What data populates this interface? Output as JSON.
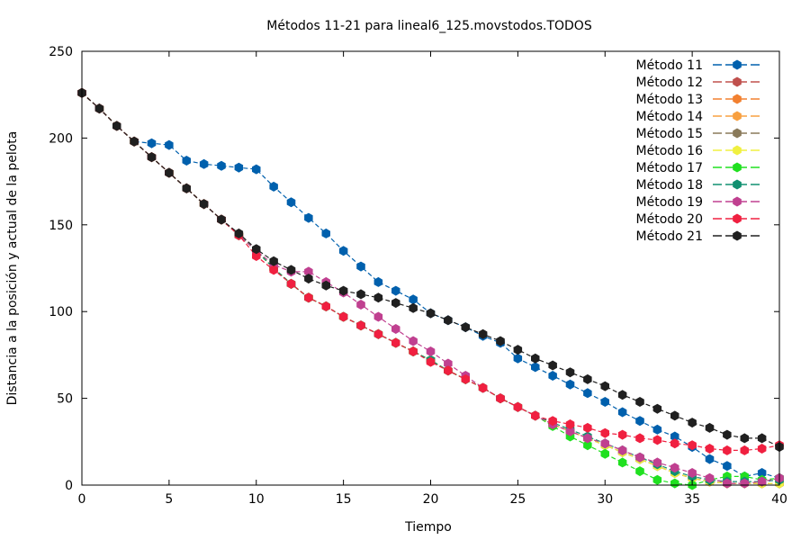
{
  "chart_data": {
    "type": "line",
    "title": "Métodos 11-21 para lineal6_125.movstodos.TODOS",
    "xlabel": "Tiempo",
    "ylabel": "Distancia a la posición y actual de la pelota",
    "xlim": [
      0,
      40
    ],
    "ylim": [
      0,
      250
    ],
    "x_ticks": [
      0,
      5,
      10,
      15,
      20,
      25,
      30,
      35,
      40
    ],
    "y_ticks": [
      0,
      50,
      100,
      150,
      200,
      250
    ],
    "grid": false,
    "legend_position": "top-right",
    "x": [
      0,
      1,
      2,
      3,
      4,
      5,
      6,
      7,
      8,
      9,
      10,
      11,
      12,
      13,
      14,
      15,
      16,
      17,
      18,
      19,
      20,
      21,
      22,
      23,
      24,
      25,
      26,
      27,
      28,
      29,
      30,
      31,
      32,
      33,
      34,
      35,
      36,
      37,
      38,
      39,
      40
    ],
    "series": [
      {
        "name": "Método 11",
        "color": "#0060ad",
        "values": [
          226,
          217,
          207,
          198,
          197,
          196,
          187,
          185,
          184,
          183,
          182,
          172,
          163,
          154,
          145,
          135,
          126,
          117,
          112,
          107,
          99,
          95,
          91,
          86,
          82,
          73,
          68,
          63,
          58,
          53,
          48,
          42,
          37,
          32,
          28,
          22,
          15,
          11,
          5,
          7,
          4
        ]
      },
      {
        "name": "Método 12",
        "color": "#c0504d",
        "values": [
          226,
          217,
          207,
          198,
          189,
          180,
          171,
          162,
          153,
          144,
          135,
          125,
          116,
          108,
          103,
          97,
          92,
          87,
          82,
          77,
          72,
          66,
          61,
          56,
          50,
          45,
          40,
          35,
          31,
          27,
          23,
          19,
          15,
          11,
          7,
          4,
          2,
          1,
          1,
          1,
          1
        ]
      },
      {
        "name": "Método 13",
        "color": "#f28030",
        "values": [
          226,
          217,
          207,
          198,
          189,
          180,
          171,
          162,
          153,
          144,
          135,
          125,
          116,
          108,
          103,
          97,
          92,
          87,
          82,
          77,
          72,
          66,
          61,
          56,
          50,
          45,
          40,
          35,
          31,
          27,
          23,
          19,
          15,
          11,
          7,
          4,
          2,
          1,
          1,
          1,
          1
        ]
      },
      {
        "name": "Método 14",
        "color": "#f8a040",
        "values": [
          226,
          217,
          207,
          198,
          189,
          180,
          171,
          162,
          153,
          144,
          135,
          125,
          116,
          108,
          103,
          97,
          92,
          87,
          82,
          77,
          72,
          66,
          61,
          56,
          50,
          45,
          40,
          35,
          31,
          27,
          23,
          19,
          15,
          11,
          7,
          4,
          2,
          1,
          1,
          1,
          1
        ]
      },
      {
        "name": "Método 15",
        "color": "#8a7a5a",
        "values": [
          226,
          217,
          207,
          198,
          189,
          180,
          171,
          162,
          153,
          144,
          135,
          125,
          116,
          108,
          103,
          97,
          92,
          87,
          82,
          77,
          72,
          66,
          61,
          56,
          50,
          45,
          40,
          35,
          31,
          27,
          23,
          19,
          15,
          11,
          7,
          4,
          2,
          1,
          1,
          1,
          1
        ]
      },
      {
        "name": "Método 16",
        "color": "#f0f040",
        "values": [
          226,
          217,
          207,
          198,
          189,
          180,
          171,
          162,
          153,
          144,
          135,
          125,
          116,
          108,
          103,
          97,
          92,
          87,
          82,
          77,
          72,
          66,
          61,
          56,
          50,
          45,
          40,
          35,
          31,
          27,
          23,
          19,
          15,
          11,
          7,
          4,
          2,
          1,
          1,
          1,
          1
        ]
      },
      {
        "name": "Método 17",
        "color": "#20e020",
        "values": [
          226,
          217,
          207,
          198,
          189,
          180,
          171,
          162,
          153,
          144,
          135,
          125,
          116,
          108,
          103,
          97,
          92,
          87,
          82,
          77,
          72,
          66,
          61,
          56,
          50,
          45,
          40,
          34,
          28,
          23,
          18,
          13,
          8,
          3,
          1,
          0,
          3,
          5,
          5,
          3,
          4
        ]
      },
      {
        "name": "Método 18",
        "color": "#109070",
        "values": [
          226,
          217,
          207,
          198,
          189,
          180,
          171,
          162,
          153,
          144,
          135,
          125,
          116,
          108,
          103,
          97,
          92,
          87,
          82,
          77,
          72,
          66,
          61,
          56,
          50,
          45,
          40,
          36,
          32,
          28,
          24,
          20,
          16,
          12,
          8,
          5,
          3,
          2,
          2,
          2,
          3
        ]
      },
      {
        "name": "Método 19",
        "color": "#c04090",
        "values": [
          226,
          217,
          207,
          198,
          189,
          180,
          171,
          162,
          153,
          144,
          135,
          127,
          123,
          123,
          117,
          111,
          104,
          97,
          90,
          83,
          77,
          70,
          63,
          56,
          50,
          45,
          40,
          35,
          31,
          27,
          24,
          20,
          16,
          13,
          10,
          7,
          4,
          1,
          1,
          2,
          4
        ]
      },
      {
        "name": "Método 20",
        "color": "#f02040",
        "values": [
          226,
          217,
          207,
          198,
          189,
          180,
          171,
          162,
          153,
          144,
          132,
          124,
          116,
          108,
          103,
          97,
          92,
          87,
          82,
          77,
          71,
          66,
          61,
          56,
          50,
          45,
          40,
          37,
          35,
          33,
          30,
          29,
          27,
          26,
          24,
          23,
          21,
          20,
          20,
          21,
          23
        ]
      },
      {
        "name": "Método 21",
        "color": "#202020",
        "values": [
          226,
          217,
          207,
          198,
          189,
          180,
          171,
          162,
          153,
          145,
          136,
          129,
          124,
          119,
          115,
          112,
          110,
          108,
          105,
          102,
          99,
          95,
          91,
          87,
          83,
          78,
          73,
          69,
          65,
          61,
          57,
          52,
          48,
          44,
          40,
          36,
          33,
          29,
          27,
          27,
          22
        ]
      }
    ]
  }
}
